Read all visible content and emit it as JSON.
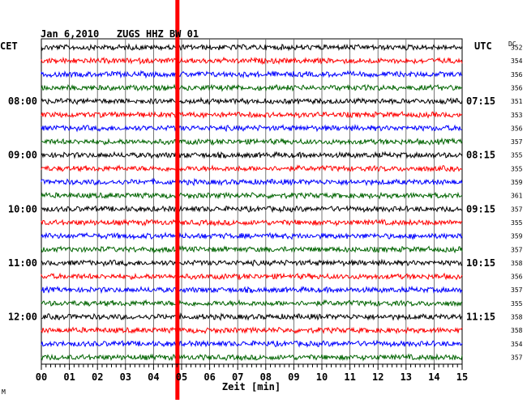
{
  "chart_data": {
    "type": "line",
    "title": "Jan 6,2010   ZUGS HHZ BW 01",
    "left_label": "CET",
    "right_label": "UTC",
    "dc_label": "DC",
    "xlabel": "Zeit [min]",
    "xlim": [
      0,
      15
    ],
    "x_ticks": [
      "00",
      "01",
      "02",
      "03",
      "04",
      "05",
      "06",
      "07",
      "08",
      "09",
      "10",
      "11",
      "12",
      "13",
      "14",
      "15"
    ],
    "trace_colors": [
      "#000000",
      "#ff0000",
      "#0000ff",
      "#006400"
    ],
    "highlight_minute": 4.85,
    "highlight_color": "#ff0000",
    "left_hour_labels": [
      {
        "row": 4,
        "label": "08:00"
      },
      {
        "row": 8,
        "label": "09:00"
      },
      {
        "row": 12,
        "label": "10:00"
      },
      {
        "row": 16,
        "label": "11:00"
      },
      {
        "row": 20,
        "label": "12:00"
      }
    ],
    "right_hour_labels": [
      {
        "row": 4,
        "label": "07:15"
      },
      {
        "row": 8,
        "label": "08:15"
      },
      {
        "row": 12,
        "label": "09:15"
      },
      {
        "row": 16,
        "label": "10:15"
      },
      {
        "row": 20,
        "label": "11:15"
      }
    ],
    "dc_values": [
      "352",
      "354",
      "356",
      "356",
      "351",
      "353",
      "356",
      "357",
      "355",
      "355",
      "359",
      "361",
      "357",
      "355",
      "359",
      "357",
      "358",
      "356",
      "357",
      "355",
      "358",
      "358",
      "354",
      "357"
    ],
    "footnote": "M"
  }
}
